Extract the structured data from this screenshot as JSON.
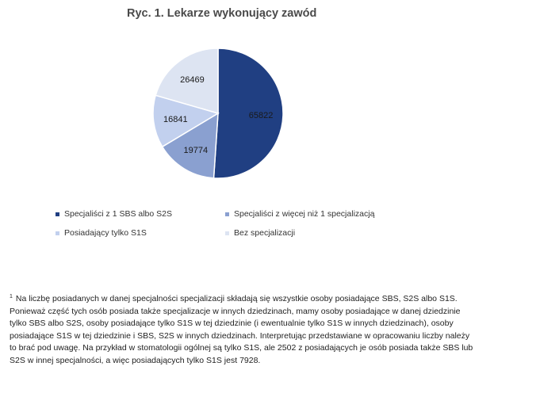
{
  "chart_data": {
    "type": "pie",
    "title": "Ryc. 1. Lekarze wykonujący zawód",
    "series": [
      {
        "name": "Specjaliści z 1 SBS albo S2S",
        "value": 65822,
        "color": "#203f82"
      },
      {
        "name": "Specjaliści z więcej niż 1 specjalizacją",
        "value": 19774,
        "color": "#8aa0d0"
      },
      {
        "name": "Posiadający tylko S1S",
        "value": 16841,
        "color": "#c2d0ee"
      },
      {
        "name": "Bez specjalizacji",
        "value": 26469,
        "color": "#dde4f2"
      }
    ],
    "legend_placement": "bottom"
  },
  "footnote": {
    "marker": "1",
    "lines": [
      "Na liczbę posiadanych w danej specjalności specjalizacji składają się wszystkie osoby posiadające SBS, S2S albo S1S.",
      "Ponieważ część tych osób posiada także specjalizacje w innych dziedzinach, mamy osoby posiadające w danej dziedzinie",
      "tylko SBS albo S2S, osoby posiadające tylko S1S w tej dziedzinie (i ewentualnie tylko S1S w innych dziedzinach), osoby",
      "posiadające S1S w tej dziedzinie i SBS, S2S w innych dziedzinach. Interpretując przedstawiane w opracowaniu liczby należy",
      "to brać pod uwagę. Na przykład w stomatologii ogólnej są tylko S1S, ale 2502 z posiadających je osób posiada także SBS lub",
      "S2S w innej specjalności, a więc posiadających tylko S1S jest 7928."
    ]
  }
}
